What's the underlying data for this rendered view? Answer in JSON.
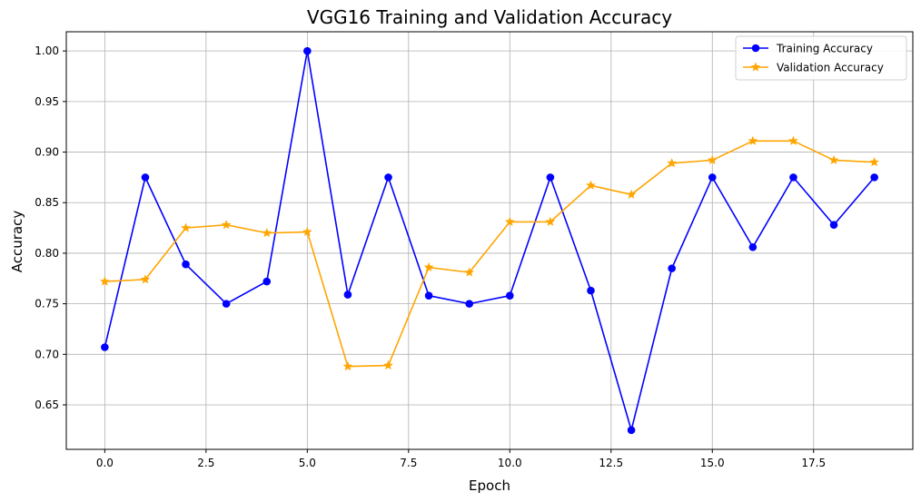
{
  "chart_data": {
    "type": "line",
    "title": "VGG16 Training and Validation Accuracy",
    "xlabel": "Epoch",
    "ylabel": "Accuracy",
    "xlim": [
      -0.95,
      19.95
    ],
    "ylim": [
      0.606,
      1.019
    ],
    "xticks": [
      0.0,
      2.5,
      5.0,
      7.5,
      10.0,
      12.5,
      15.0,
      17.5
    ],
    "xtick_labels": [
      "0.0",
      "2.5",
      "5.0",
      "7.5",
      "10.0",
      "12.5",
      "15.0",
      "17.5"
    ],
    "yticks": [
      0.65,
      0.7,
      0.75,
      0.8,
      0.85,
      0.9,
      0.95,
      1.0
    ],
    "ytick_labels": [
      "0.65",
      "0.70",
      "0.75",
      "0.80",
      "0.85",
      "0.90",
      "0.95",
      "1.00"
    ],
    "grid": true,
    "legend_position": "top-right",
    "x": [
      0,
      1,
      2,
      3,
      4,
      5,
      6,
      7,
      8,
      9,
      10,
      11,
      12,
      13,
      14,
      15,
      16,
      17,
      18,
      19
    ],
    "series": [
      {
        "name": "Training Accuracy",
        "color": "#0000ff",
        "marker": "circle",
        "values": [
          0.707,
          0.875,
          0.789,
          0.75,
          0.772,
          1.0,
          0.759,
          0.875,
          0.758,
          0.75,
          0.758,
          0.875,
          0.763,
          0.625,
          0.785,
          0.875,
          0.806,
          0.875,
          0.828,
          0.875
        ]
      },
      {
        "name": "Validation Accuracy",
        "color": "#ffa500",
        "marker": "star",
        "values": [
          0.772,
          0.774,
          0.825,
          0.828,
          0.82,
          0.821,
          0.688,
          0.689,
          0.786,
          0.781,
          0.831,
          0.831,
          0.867,
          0.858,
          0.889,
          0.892,
          0.911,
          0.911,
          0.892,
          0.89
        ]
      }
    ]
  }
}
